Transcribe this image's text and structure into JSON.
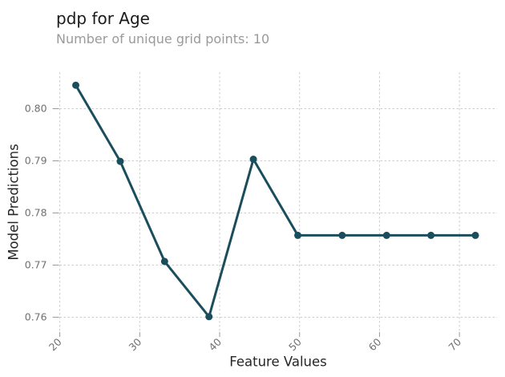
{
  "header": {
    "title": "pdp for Age",
    "subtitle": "Number of unique grid points: 10"
  },
  "chart_data": {
    "type": "line",
    "title": "pdp for Age",
    "subtitle": "Number of unique grid points: 10",
    "xlabel": "Feature Values",
    "ylabel": "Model Predictions",
    "x": [
      22,
      27.56,
      33.11,
      38.67,
      44.22,
      49.78,
      55.33,
      60.89,
      66.44,
      72
    ],
    "y": [
      0.8045,
      0.7899,
      0.7707,
      0.7601,
      0.7903,
      0.7757,
      0.7757,
      0.7757,
      0.7757,
      0.7757
    ],
    "xticks": [
      20,
      30,
      40,
      50,
      60,
      70
    ],
    "yticks": [
      0.76,
      0.77,
      0.78,
      0.79,
      0.8
    ],
    "xlim": [
      20,
      74.7
    ],
    "ylim": [
      0.7573,
      0.807
    ],
    "grid": true,
    "grid_style": "dashed",
    "legend": "none",
    "line_color": "#1A4E5D",
    "marker_color": "#1A4E5D",
    "line_width": 3,
    "marker_radius": 4.5
  },
  "colors": {
    "grid": "#cccccc",
    "tick": "#999999",
    "tick_label": "#707070",
    "axis_label": "#262626",
    "title": "#1a1a1a",
    "subtitle": "#9a9a9a",
    "background": "#ffffff"
  }
}
